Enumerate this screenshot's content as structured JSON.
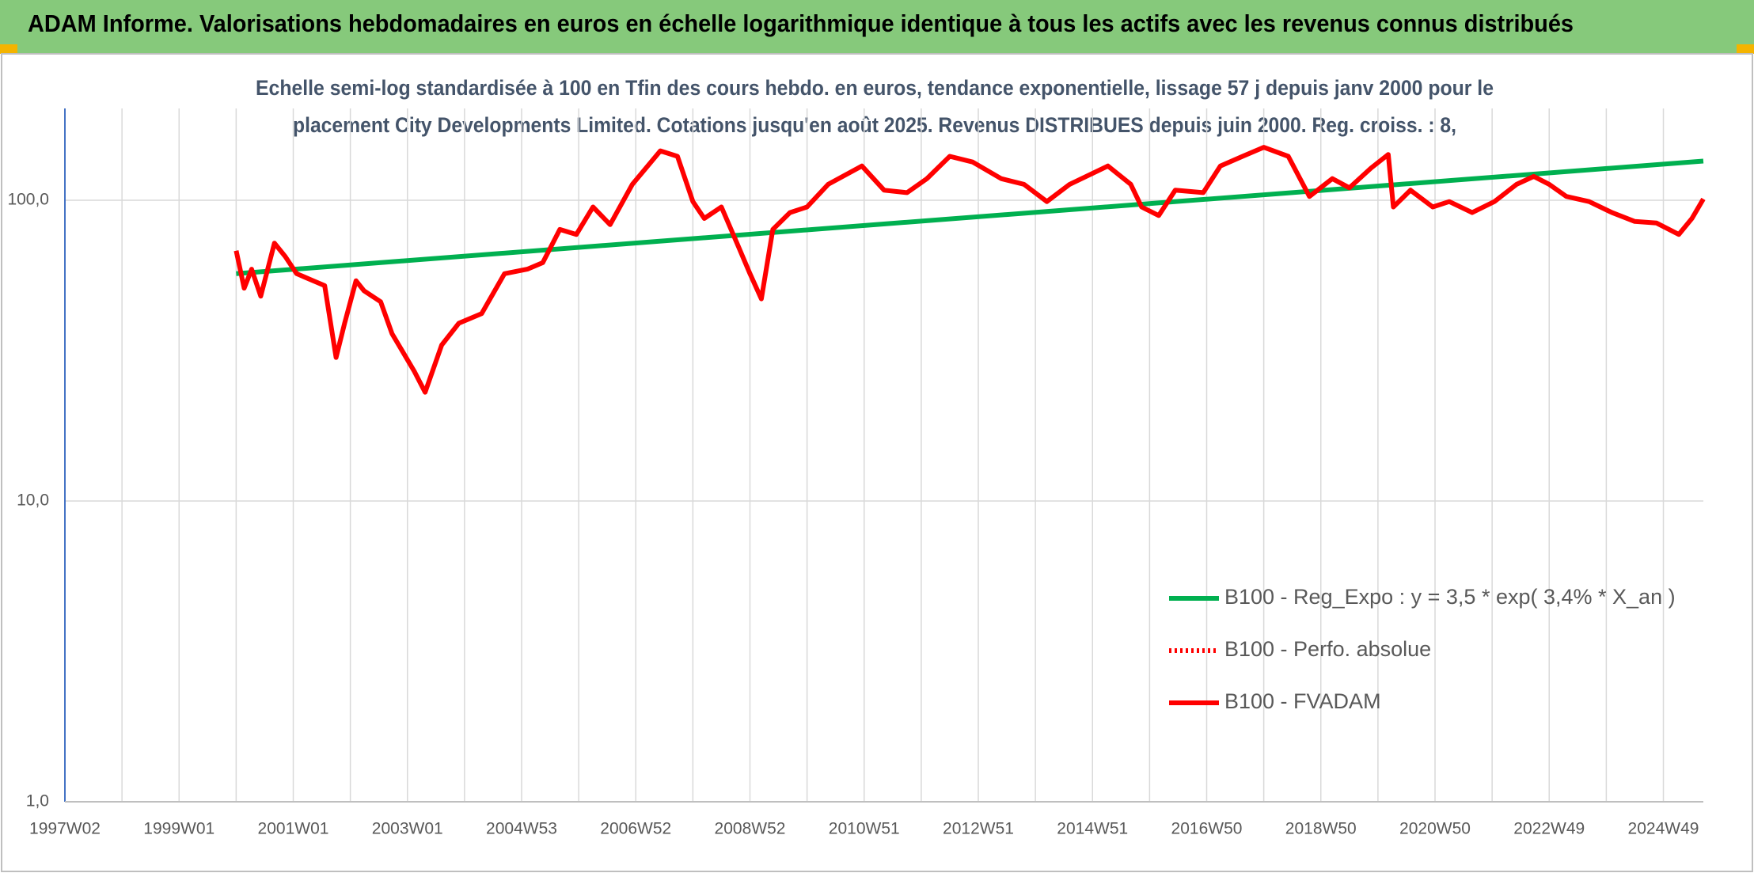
{
  "chart_data": {
    "type": "line",
    "title": "ADAM Informe. Valorisations hebdomadaires en euros en échelle logarithmique identique à tous les actifs avec les revenus connus distribués",
    "subtitle": [
      "Echelle semi-log standardisée à 100 en Tfin des cours hebdo. en euros, tendance exponentielle, lissage 57 j depuis janv 2000 pour le",
      "placement City Developments Limited. Cotations jusqu'en août 2025. Revenus DISTRIBUES depuis juin 2000. Reg. croiss. : 8,"
    ],
    "log_scale": true,
    "grid": true,
    "legend": "lower right",
    "xlim": [
      1997,
      2025.7
    ],
    "xticks": [
      {
        "value": 1997,
        "label": "1997W02"
      },
      {
        "value": 1999,
        "label": "1999W01"
      },
      {
        "value": 2001,
        "label": "2001W01"
      },
      {
        "value": 2003,
        "label": "2003W01"
      },
      {
        "value": 2005,
        "label": "2004W53"
      },
      {
        "value": 2007,
        "label": "2006W52"
      },
      {
        "value": 2009,
        "label": "2008W52"
      },
      {
        "value": 2011,
        "label": "2010W51"
      },
      {
        "value": 2013,
        "label": "2012W51"
      },
      {
        "value": 2015,
        "label": "2014W51"
      },
      {
        "value": 2017,
        "label": "2016W50"
      },
      {
        "value": 2019,
        "label": "2018W50"
      },
      {
        "value": 2021,
        "label": "2020W50"
      },
      {
        "value": 2023,
        "label": "2022W49"
      },
      {
        "value": 2025,
        "label": "2024W49"
      }
    ],
    "ylim": [
      1,
      202
    ],
    "yticks": [
      {
        "value": 1,
        "label": "1,0"
      },
      {
        "value": 10,
        "label": "10,0"
      },
      {
        "value": 100,
        "label": "100,0"
      }
    ],
    "series": [
      {
        "name": "B100 - Reg_Expo : y = 3,5 * exp( 3,4% *  X_an )",
        "color": "#00b050",
        "style": "solid",
        "x": [
          2000.0,
          2025.7
        ],
        "values": [
          57,
          135
        ]
      },
      {
        "name": "B100 - Perfo. absolue",
        "color": "#ff0000",
        "style": "dotted",
        "x": [],
        "values": []
      },
      {
        "name": "B100 - FVADAM",
        "color": "#ff0000",
        "style": "solid",
        "x": [
          2000.0,
          2000.14,
          2000.27,
          2000.43,
          2000.67,
          2000.86,
          2001.06,
          2001.35,
          2001.55,
          2001.75,
          2001.9,
          2002.1,
          2002.24,
          2002.53,
          2002.73,
          2003.12,
          2003.31,
          2003.6,
          2003.9,
          2004.3,
          2004.7,
          2005.1,
          2005.37,
          2005.67,
          2005.96,
          2006.25,
          2006.55,
          2006.94,
          2007.43,
          2007.73,
          2008.0,
          2008.2,
          2008.5,
          2008.8,
          2009.0,
          2009.2,
          2009.4,
          2009.7,
          2010.0,
          2010.37,
          2010.96,
          2011.35,
          2011.75,
          2012.1,
          2012.5,
          2012.9,
          2013.4,
          2013.8,
          2014.2,
          2014.6,
          2015.27,
          2015.67,
          2015.86,
          2016.16,
          2016.45,
          2016.94,
          2017.24,
          2017.63,
          2018.0,
          2018.43,
          2018.8,
          2019.2,
          2019.5,
          2019.88,
          2020.18,
          2020.27,
          2020.57,
          2020.96,
          2021.25,
          2021.65,
          2022.04,
          2022.43,
          2022.73,
          2023.0,
          2023.3,
          2023.7,
          2024.1,
          2024.5,
          2024.88,
          2025.27,
          2025.5,
          2025.7
        ],
        "values": [
          68,
          51,
          59,
          48,
          72,
          65,
          57,
          54,
          52,
          30,
          39,
          54,
          50,
          46,
          36,
          27,
          23,
          33,
          39,
          42,
          57,
          59,
          62,
          80,
          77,
          95,
          83,
          113,
          146,
          140,
          99,
          87,
          95,
          70,
          57,
          47,
          80,
          91,
          95,
          113,
          130,
          108,
          106,
          118,
          140,
          134,
          118,
          113,
          99,
          113,
          130,
          113,
          95,
          89,
          108,
          106,
          130,
          140,
          150,
          140,
          103,
          118,
          110,
          128,
          142,
          95,
          108,
          95,
          99,
          91,
          99,
          113,
          120,
          113,
          103,
          99,
          91,
          85,
          84,
          77,
          87,
          101
        ]
      }
    ]
  }
}
